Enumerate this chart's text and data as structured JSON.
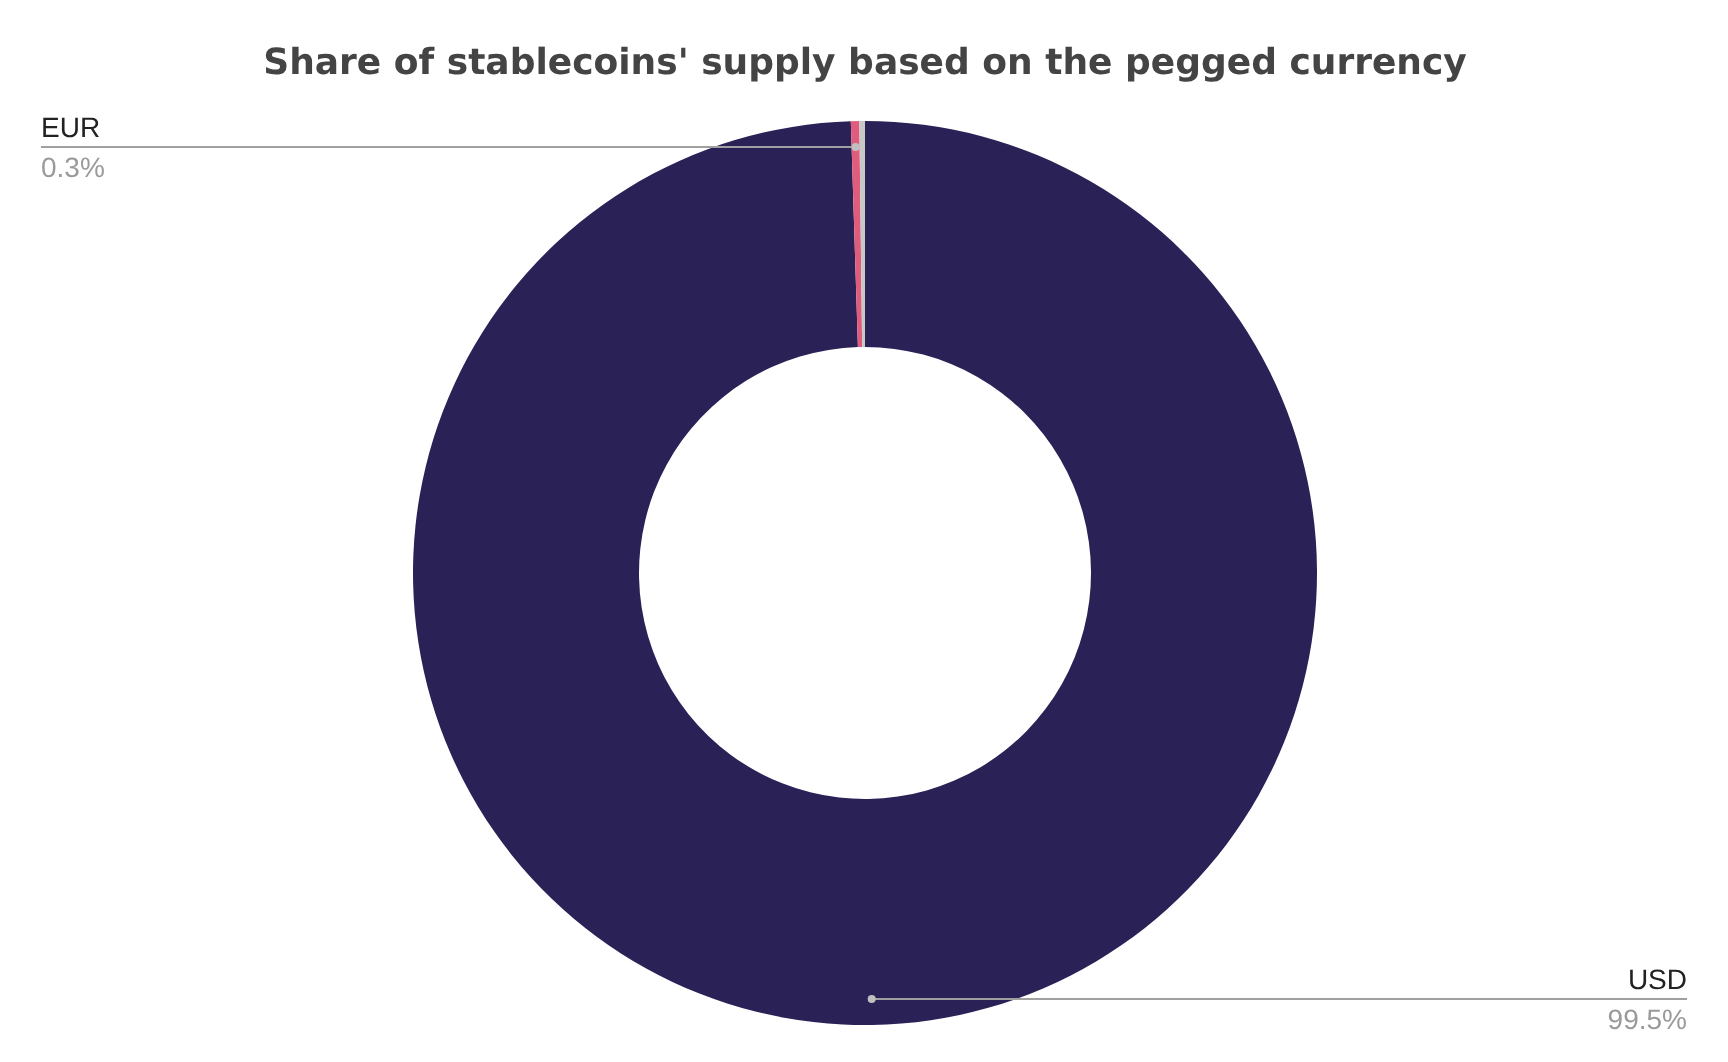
{
  "chart_data": {
    "type": "donut",
    "title": "Share of stablecoins' supply based on the pegged currency",
    "categories": [
      "USD",
      "EUR",
      null
    ],
    "values": [
      99.5,
      0.3,
      0.2
    ],
    "colors": [
      "#2a2156",
      "#e05c7c",
      "#c8c8c8"
    ],
    "value_labels": [
      "99.5%",
      "0.3%",
      null
    ]
  }
}
